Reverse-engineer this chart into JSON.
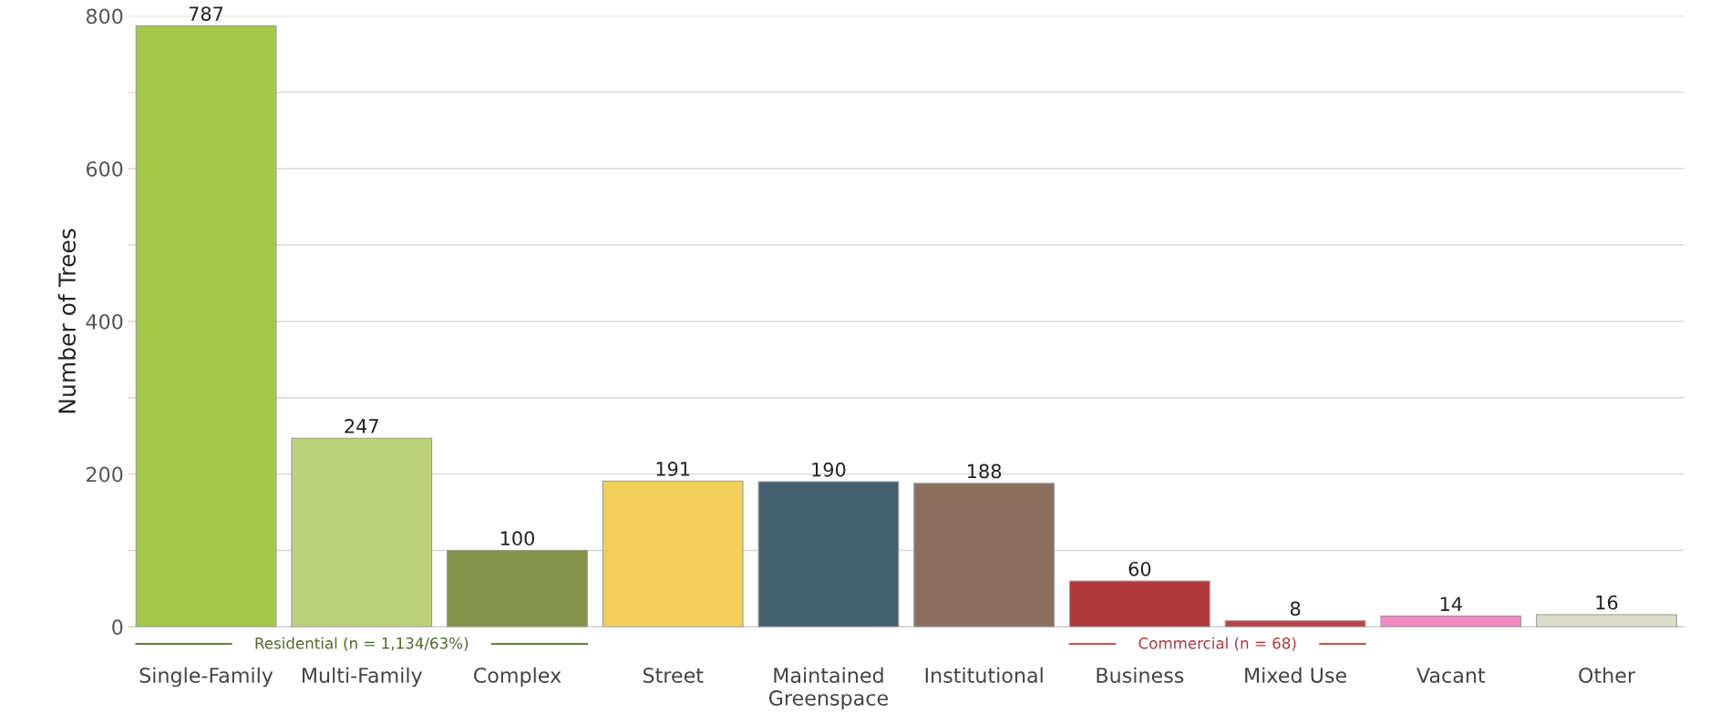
{
  "chart_data": {
    "type": "bar",
    "ylabel": "Number of Trees",
    "categories": [
      "Single-Family",
      "Multi-Family",
      "Complex",
      "Street",
      "Maintained\nGreenspace",
      "Institutional",
      "Business",
      "Mixed Use",
      "Vacant",
      "Other"
    ],
    "values": [
      787,
      247,
      100,
      191,
      190,
      188,
      60,
      8,
      14,
      16
    ],
    "colors": [
      "#a4c94a",
      "#bdd07a",
      "#84924a",
      "#f2cf5b",
      "#44606f",
      "#8a6f5f",
      "#b0393c",
      "#b84549",
      "#f08ac0",
      "#dcdccb"
    ],
    "ylim": [
      0,
      800
    ],
    "yticks": [
      0,
      {
        "value": 100,
        "label": null
      },
      200,
      {
        "value": 300,
        "label": null
      },
      400,
      {
        "value": 500,
        "label": null
      },
      600,
      {
        "value": 700,
        "label": null
      },
      800
    ],
    "grid": "y",
    "data_labels": true,
    "annotations": [
      "Residential (n = 1,134/63%)",
      "Commercial (n = 68)"
    ]
  }
}
